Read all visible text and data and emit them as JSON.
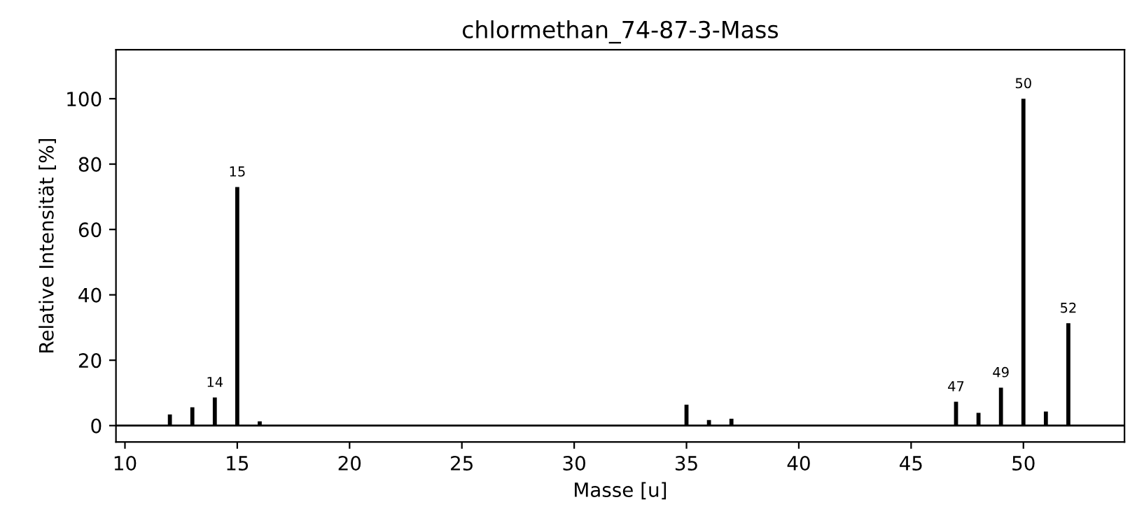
{
  "chart_data": {
    "type": "bar",
    "title": "chlormethan_74-87-3-Mass",
    "xlabel": "Masse [u]",
    "ylabel": "Relative Intensität [%]",
    "x": [
      12,
      13,
      14,
      15,
      16,
      35,
      36,
      37,
      47,
      48,
      49,
      50,
      51,
      52
    ],
    "values": [
      3.4,
      5.6,
      8.6,
      73,
      1.3,
      6.4,
      1.7,
      2.1,
      7.3,
      3.9,
      11.6,
      100,
      4.3,
      31.3
    ],
    "color": "#000000",
    "xlim": [
      9.6,
      54.5
    ],
    "ylim": [
      -5,
      115
    ],
    "xticks": [
      10,
      15,
      20,
      25,
      30,
      35,
      40,
      45,
      50
    ],
    "yticks": [
      0,
      20,
      40,
      60,
      80,
      100
    ],
    "ref_lines": [
      {
        "axis": "y",
        "value": 0,
        "color": "#000000"
      }
    ],
    "grid": false,
    "annotations": [
      {
        "text": "14",
        "x": 14,
        "y": 8.6
      },
      {
        "text": "15",
        "x": 15,
        "y": 73
      },
      {
        "text": "47",
        "x": 47,
        "y": 7.3
      },
      {
        "text": "49",
        "x": 49,
        "y": 11.6
      },
      {
        "text": "50",
        "x": 50,
        "y": 100
      },
      {
        "text": "52",
        "x": 52,
        "y": 31.3
      }
    ]
  }
}
